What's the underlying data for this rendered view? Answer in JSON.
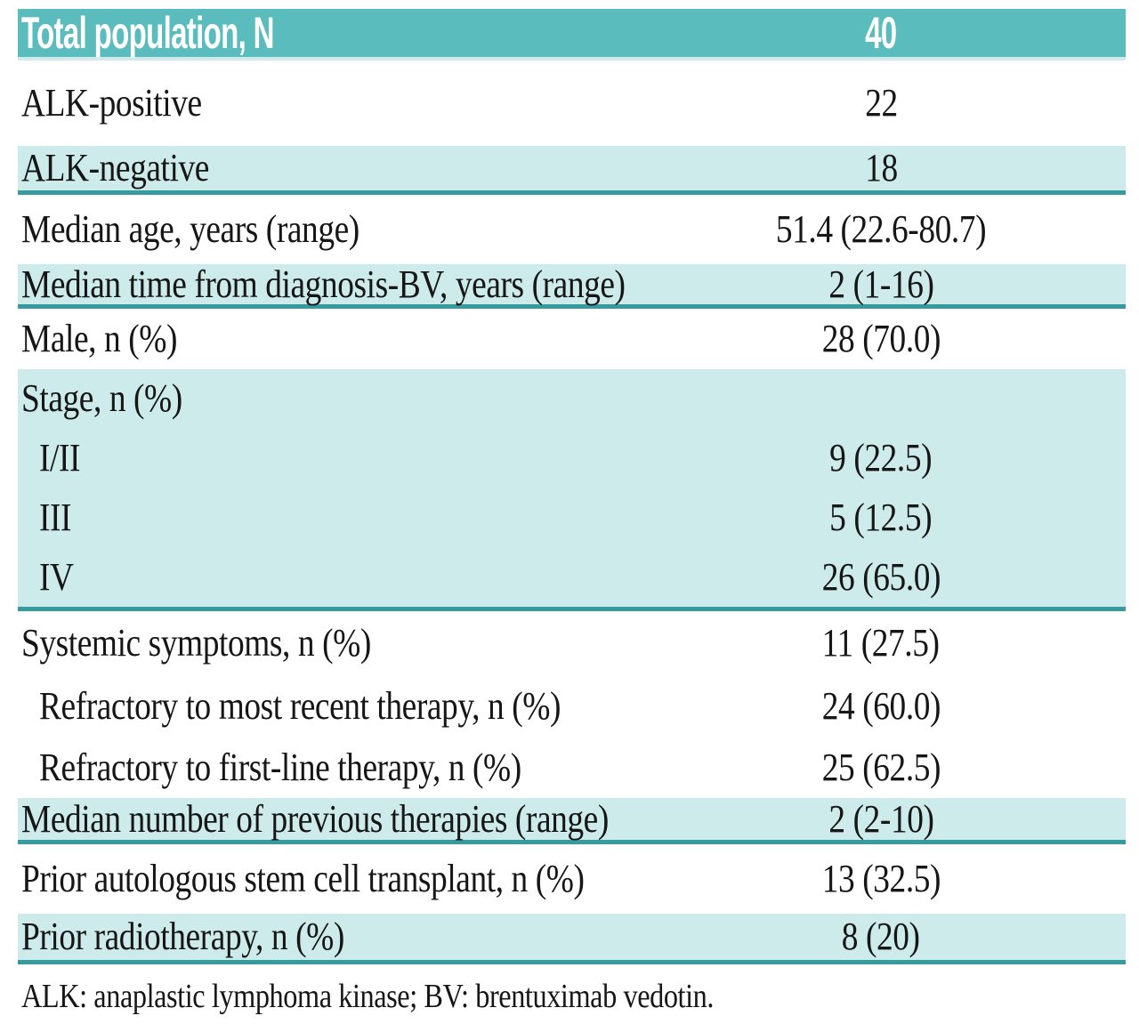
{
  "colors": {
    "header_bg": "#5bbcbd",
    "row_shade": "#cdebea",
    "rule_line": "#359b9d",
    "header_text": "#ffffff",
    "body_text": "#161616"
  },
  "table": {
    "header": {
      "label": "Total population, N",
      "value": "40"
    },
    "rows": [
      {
        "label": "ALK-positive",
        "value": "22",
        "shaded": false,
        "indent": false,
        "rule": false
      },
      {
        "label": "ALK-negative",
        "value": "18",
        "shaded": true,
        "indent": false,
        "rule": true
      },
      {
        "label": "Median age, years (range)",
        "value": "51.4 (22.6-80.7)",
        "shaded": false,
        "indent": false,
        "rule": false
      },
      {
        "label": "Median time from diagnosis-BV, years (range)",
        "value": "2 (1-16)",
        "shaded": true,
        "indent": false,
        "rule": true
      },
      {
        "label": "Male, n (%)",
        "value": "28 (70.0)",
        "shaded": false,
        "indent": false,
        "rule": false
      },
      {
        "label": "Stage, n (%)",
        "value": "",
        "shaded": true,
        "indent": false,
        "rule": false
      },
      {
        "label": "I/II",
        "value": "9 (22.5)",
        "shaded": true,
        "indent": true,
        "rule": false
      },
      {
        "label": "III",
        "value": "5 (12.5)",
        "shaded": true,
        "indent": true,
        "rule": false
      },
      {
        "label": "IV",
        "value": "26 (65.0)",
        "shaded": true,
        "indent": true,
        "rule": true
      },
      {
        "label": "Systemic symptoms, n (%)",
        "value": "11 (27.5)",
        "shaded": false,
        "indent": false,
        "rule": false
      },
      {
        "label": "Refractory to most recent therapy, n (%)",
        "value": "24 (60.0)",
        "shaded": false,
        "indent": true,
        "rule": false
      },
      {
        "label": "Refractory to first-line therapy, n (%)",
        "value": "25 (62.5)",
        "shaded": false,
        "indent": true,
        "rule": false
      },
      {
        "label": "Median number of previous therapies (range)",
        "value": "2 (2-10)",
        "shaded": true,
        "indent": false,
        "rule": true
      },
      {
        "label": "Prior autologous stem cell transplant, n (%)",
        "value": "13 (32.5)",
        "shaded": false,
        "indent": false,
        "rule": false
      },
      {
        "label": "Prior radiotherapy, n (%)",
        "value": "8 (20)",
        "shaded": true,
        "indent": false,
        "rule": true
      }
    ],
    "footnote": "ALK: anaplastic lymphoma kinase; BV: brentuximab vedotin."
  }
}
